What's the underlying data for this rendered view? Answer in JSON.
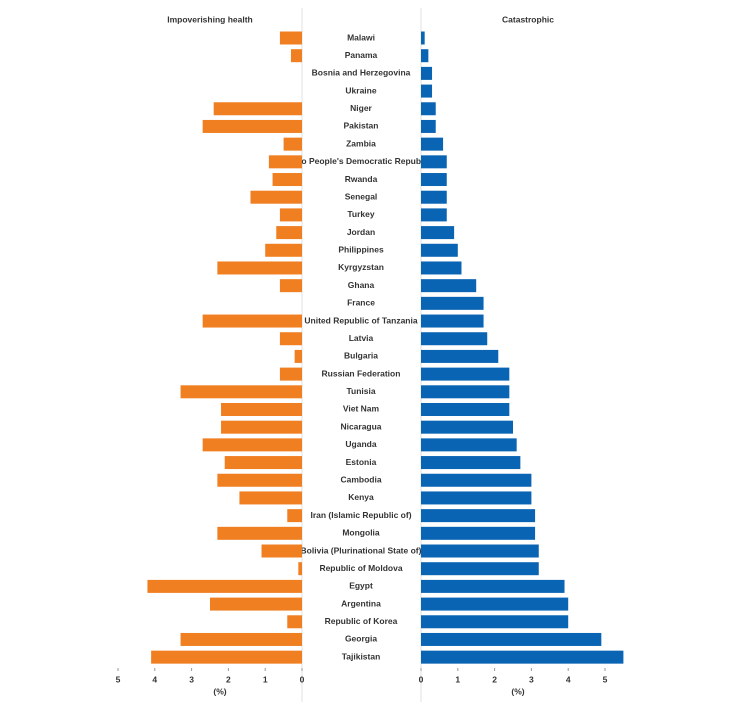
{
  "chart_data": {
    "type": "butterfly",
    "categories": [
      "Malawi",
      "Panama",
      "Bosnia and Herzegovina",
      "Ukraine",
      "Niger",
      "Pakistan",
      "Zambia",
      "Lao People's Democratic Republic",
      "Rwanda",
      "Senegal",
      "Turkey",
      "Jordan",
      "Philippines",
      "Kyrgyzstan",
      "Ghana",
      "France",
      "United Republic of Tanzania",
      "Latvia",
      "Bulgaria",
      "Russian Federation",
      "Tunisia",
      "Viet Nam",
      "Nicaragua",
      "Uganda",
      "Estonia",
      "Cambodia",
      "Kenya",
      "Iran (Islamic Republic of)",
      "Mongolia",
      "Bolivia (Plurinational State of)",
      "Republic of Moldova",
      "Egypt",
      "Argentina",
      "Republic of Korea",
      "Georgia",
      "Tajikistan"
    ],
    "series": [
      {
        "name": "Impoverishing health",
        "color": "#f07f22",
        "xlabel": "(%)",
        "xlim": [
          0,
          5
        ],
        "xticks": [
          0,
          1,
          2,
          3,
          4,
          5
        ],
        "values": [
          0.6,
          0.3,
          0,
          0,
          2.4,
          2.7,
          0.5,
          0.9,
          0.8,
          1.4,
          0.6,
          0.7,
          1.0,
          2.3,
          0.6,
          0,
          2.7,
          0.6,
          0.2,
          0.6,
          3.3,
          2.2,
          2.2,
          2.7,
          2.1,
          2.3,
          1.7,
          0.4,
          2.3,
          1.1,
          0.1,
          4.2,
          2.5,
          0.4,
          3.3,
          4.1
        ]
      },
      {
        "name": "Catastrophic",
        "color": "#0a64b4",
        "xlabel": "(%)",
        "xlim": [
          0,
          5.5
        ],
        "xticks": [
          0,
          1,
          2,
          3,
          4,
          5
        ],
        "values": [
          0.1,
          0.2,
          0.3,
          0.3,
          0.4,
          0.4,
          0.6,
          0.7,
          0.7,
          0.7,
          0.7,
          0.9,
          1.0,
          1.1,
          1.5,
          1.7,
          1.7,
          1.8,
          2.1,
          2.4,
          2.4,
          2.4,
          2.5,
          2.6,
          2.7,
          3.0,
          3.0,
          3.1,
          3.1,
          3.2,
          3.2,
          3.9,
          4.0,
          4.0,
          4.9,
          5.5
        ]
      }
    ]
  }
}
